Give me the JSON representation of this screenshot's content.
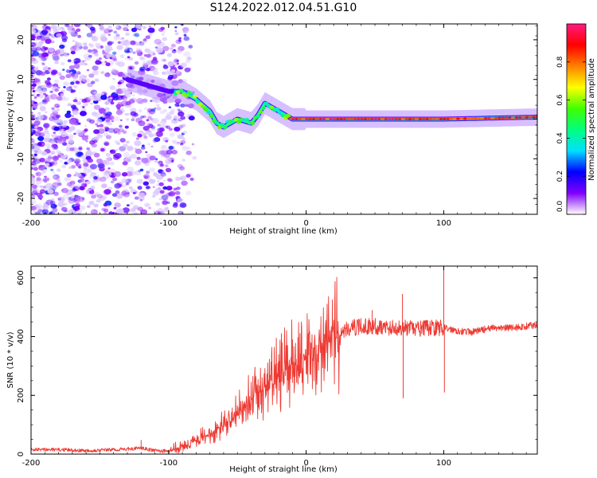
{
  "title": "S124.2022.012.04.51.G10",
  "chart_data": [
    {
      "type": "heatmap",
      "xlabel": "Height of straight line (km)",
      "ylabel": "Frequency (Hz)",
      "xlim": [
        -200,
        168
      ],
      "ylim": [
        -24,
        24
      ],
      "xticks": [
        -200,
        -100,
        0,
        100
      ],
      "yticks": [
        -20,
        -10,
        0,
        10,
        20
      ],
      "grid": false,
      "colorbar": {
        "label": "Normalized spectral amplitude",
        "range": [
          0,
          1
        ],
        "ticks": [
          "0.0",
          "0.2",
          "0.4",
          "0.6",
          "0.8"
        ],
        "tick_values": [
          0.0,
          0.2,
          0.4,
          0.6,
          0.8
        ],
        "colors": [
          "#ffffff",
          "#8000ff",
          "#0000ff",
          "#00e0ff",
          "#00ff80",
          "#40ff00",
          "#ffff00",
          "#ff8000",
          "#ff0000",
          "#ff1a80"
        ]
      },
      "ridge": [
        {
          "x": -130,
          "y": 10
        },
        {
          "x": -110,
          "y": 8
        },
        {
          "x": -100,
          "y": 7
        },
        {
          "x": -90,
          "y": 7
        },
        {
          "x": -80,
          "y": 5
        },
        {
          "x": -70,
          "y": 2
        },
        {
          "x": -65,
          "y": -1
        },
        {
          "x": -60,
          "y": -2
        },
        {
          "x": -50,
          "y": 0
        },
        {
          "x": -40,
          "y": -1
        },
        {
          "x": -35,
          "y": 1
        },
        {
          "x": -30,
          "y": 4
        },
        {
          "x": -25,
          "y": 3
        },
        {
          "x": -20,
          "y": 2
        },
        {
          "x": -15,
          "y": 1
        },
        {
          "x": -10,
          "y": 0
        },
        {
          "x": 0,
          "y": 0
        },
        {
          "x": 50,
          "y": 0
        },
        {
          "x": 100,
          "y": 0
        },
        {
          "x": 168,
          "y": 0.5
        }
      ]
    },
    {
      "type": "line",
      "xlabel": "Height of straight line (km)",
      "ylabel": "SNR (10 * v/v)",
      "xlim": [
        -200,
        168
      ],
      "ylim": [
        0,
        640
      ],
      "xticks": [
        -200,
        -100,
        0,
        100
      ],
      "yticks": [
        0,
        200,
        400,
        600
      ],
      "grid": false,
      "line_color": "#ee3a33",
      "series": [
        {
          "x": [
            -200,
            -180,
            -160,
            -140,
            -120,
            -110,
            -100,
            -90,
            -80,
            -70,
            -60,
            -50,
            -40,
            -30,
            -20,
            -10,
            0,
            10,
            20,
            30,
            40,
            50,
            60,
            70,
            80,
            90,
            100,
            110,
            120,
            130,
            140,
            150,
            160,
            168
          ],
          "values": [
            15,
            15,
            12,
            15,
            20,
            12,
            10,
            25,
            45,
            70,
            100,
            140,
            190,
            230,
            270,
            310,
            340,
            370,
            400,
            425,
            435,
            435,
            430,
            430,
            425,
            430,
            430,
            420,
            415,
            425,
            430,
            430,
            435,
            440
          ]
        }
      ],
      "spikes": [
        {
          "x": -120,
          "value": 48
        },
        {
          "x": -25,
          "value": 350
        },
        {
          "x": -10,
          "value": 390
        },
        {
          "x": 35,
          "value": 460
        },
        {
          "x": 48,
          "value": 490
        },
        {
          "x": 70,
          "value": 545
        },
        {
          "x": 70.5,
          "value": 190
        },
        {
          "x": 100,
          "value": 640
        },
        {
          "x": 100.5,
          "value": 210
        }
      ]
    }
  ]
}
